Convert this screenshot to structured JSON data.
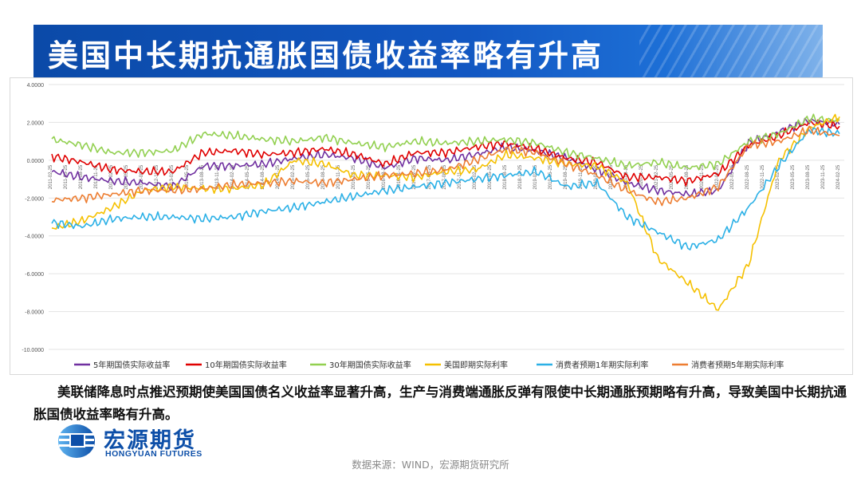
{
  "header": {
    "title": "美国中长期抗通胀国债收益率略有升高"
  },
  "body_text": "美联储降息时点推迟预期使美国国债名义收益率显著升高，生产与消费端通胀反弹有限使中长期通胀预期略有升高，导致美国中长期抗通胀国债收益率略有升高。",
  "logo": {
    "cn": "宏源期货",
    "en": "HONGYUAN FUTURES"
  },
  "source": "数据来源：WIND，宏源期货研究所",
  "colors": {
    "title_band": "#1257c2",
    "series_5y": "#7030a0",
    "series_10y": "#e00000",
    "series_30y": "#92d050",
    "series_short": "#f5c000",
    "series_1y_exp": "#2bb0e6",
    "series_5y_exp": "#ed7d31"
  },
  "chart_data": {
    "type": "line",
    "title": "",
    "xlabel": "",
    "ylabel": "",
    "ylim": [
      -10,
      4
    ],
    "yticks": [
      "4.0000",
      "2.0000",
      "0.0000",
      "-2.0000",
      "-4.0000",
      "-6.0000",
      "-8.0000",
      "-10.0000"
    ],
    "ytick_values": [
      4,
      2,
      0,
      -2,
      -4,
      -6,
      -8,
      -10
    ],
    "xticks": [
      "2011-02-25",
      "2011-05-25",
      "2011-08-25",
      "2011-11-25",
      "2012-02-25",
      "2012-05-25",
      "2012-08-25",
      "2012-11-25",
      "2013-02-25",
      "2013-05-25",
      "2013-08-25",
      "2013-11-25",
      "2014-02-25",
      "2014-05-25",
      "2014-08-25",
      "2014-11-25",
      "2015-02-25",
      "2015-05-25",
      "2015-08-25",
      "2015-11-25",
      "2016-02-25",
      "2016-05-25",
      "2016-08-25",
      "2016-11-25",
      "2017-02-25",
      "2017-05-25",
      "2017-08-25",
      "2017-11-25",
      "2018-02-25",
      "2018-05-25",
      "2018-08-25",
      "2018-11-25",
      "2019-02-25",
      "2019-05-25",
      "2019-08-25",
      "2019-11-25",
      "2020-02-25",
      "2020-05-25",
      "2020-08-25",
      "2020-11-25",
      "2021-02-25",
      "2021-05-25",
      "2021-08-25",
      "2021-11-25",
      "2022-02-25",
      "2022-05-25",
      "2022-08-25",
      "2022-11-25",
      "2023-02-25",
      "2023-05-25",
      "2023-08-25",
      "2023-11-25",
      "2024-02-25"
    ],
    "x": [
      "2011-02",
      "2011-08",
      "2012-02",
      "2012-08",
      "2013-02",
      "2013-08",
      "2014-02",
      "2014-08",
      "2015-02",
      "2015-08",
      "2016-02",
      "2016-08",
      "2017-02",
      "2017-08",
      "2018-02",
      "2018-08",
      "2019-02",
      "2019-08",
      "2020-02",
      "2020-08",
      "2021-02",
      "2021-08",
      "2022-02",
      "2022-08",
      "2023-02",
      "2023-08",
      "2024-02"
    ],
    "legend_position": "bottom",
    "grid": true,
    "series": [
      {
        "name": "5年期国债实际收益率",
        "color": "#7030a0",
        "values": [
          -0.6,
          -0.9,
          -1.1,
          -1.2,
          -1.4,
          -0.3,
          -0.3,
          -0.2,
          0.1,
          0.3,
          0.1,
          -0.4,
          0.1,
          0.0,
          0.3,
          0.7,
          0.5,
          0.1,
          -0.5,
          -1.2,
          -1.6,
          -1.8,
          -1.6,
          0.9,
          1.5,
          2.1,
          1.9
        ]
      },
      {
        "name": "10年期国债实际收益率",
        "color": "#e00000",
        "values": [
          0.2,
          -0.1,
          -0.5,
          -0.6,
          -0.6,
          0.4,
          0.5,
          0.3,
          0.4,
          0.6,
          0.3,
          -0.2,
          0.4,
          0.4,
          0.7,
          0.9,
          0.6,
          0.1,
          -0.1,
          -0.9,
          -0.9,
          -1.1,
          -0.7,
          0.8,
          1.3,
          2.0,
          1.8
        ]
      },
      {
        "name": "30年期国债实际收益率",
        "color": "#92d050",
        "values": [
          1.1,
          0.8,
          0.4,
          0.4,
          0.5,
          1.4,
          1.3,
          1.1,
          1.0,
          1.2,
          0.9,
          0.7,
          1.0,
          0.9,
          1.0,
          1.1,
          0.9,
          0.4,
          0.1,
          -0.3,
          -0.1,
          -0.4,
          -0.2,
          1.0,
          1.4,
          2.2,
          2.1
        ]
      },
      {
        "name": "美国即期实际利率",
        "color": "#f5c000",
        "values": [
          -3.6,
          -3.2,
          -2.5,
          -1.6,
          -1.4,
          -1.5,
          -1.5,
          -1.3,
          0.0,
          -0.2,
          -0.8,
          -0.8,
          -0.9,
          -0.6,
          -0.5,
          0.3,
          0.1,
          -0.2,
          -0.3,
          -1.2,
          -5.2,
          -6.5,
          -7.9,
          -5.5,
          0.0,
          1.7,
          2.3
        ]
      },
      {
        "name": "消费者预期1年期实际利率",
        "color": "#2bb0e6",
        "values": [
          -3.3,
          -3.5,
          -3.1,
          -3.0,
          -3.0,
          -3.1,
          -3.0,
          -2.7,
          -2.5,
          -2.2,
          -1.9,
          -1.6,
          -1.4,
          -1.2,
          -1.0,
          -0.8,
          -0.6,
          -1.4,
          -1.2,
          -3.0,
          -3.8,
          -4.6,
          -4.2,
          -2.5,
          -0.3,
          1.6,
          1.4
        ]
      },
      {
        "name": "消费者预期5年期实际利率",
        "color": "#ed7d31",
        "values": [
          -2.1,
          -2.0,
          -1.8,
          -1.6,
          -1.6,
          -1.5,
          -1.3,
          -1.2,
          -1.1,
          -1.2,
          -1.0,
          -0.8,
          -0.7,
          -0.5,
          0.0,
          0.6,
          0.4,
          -0.2,
          -0.8,
          -1.6,
          -2.2,
          -2.0,
          -1.4,
          0.8,
          1.0,
          1.6,
          1.3
        ]
      }
    ]
  }
}
